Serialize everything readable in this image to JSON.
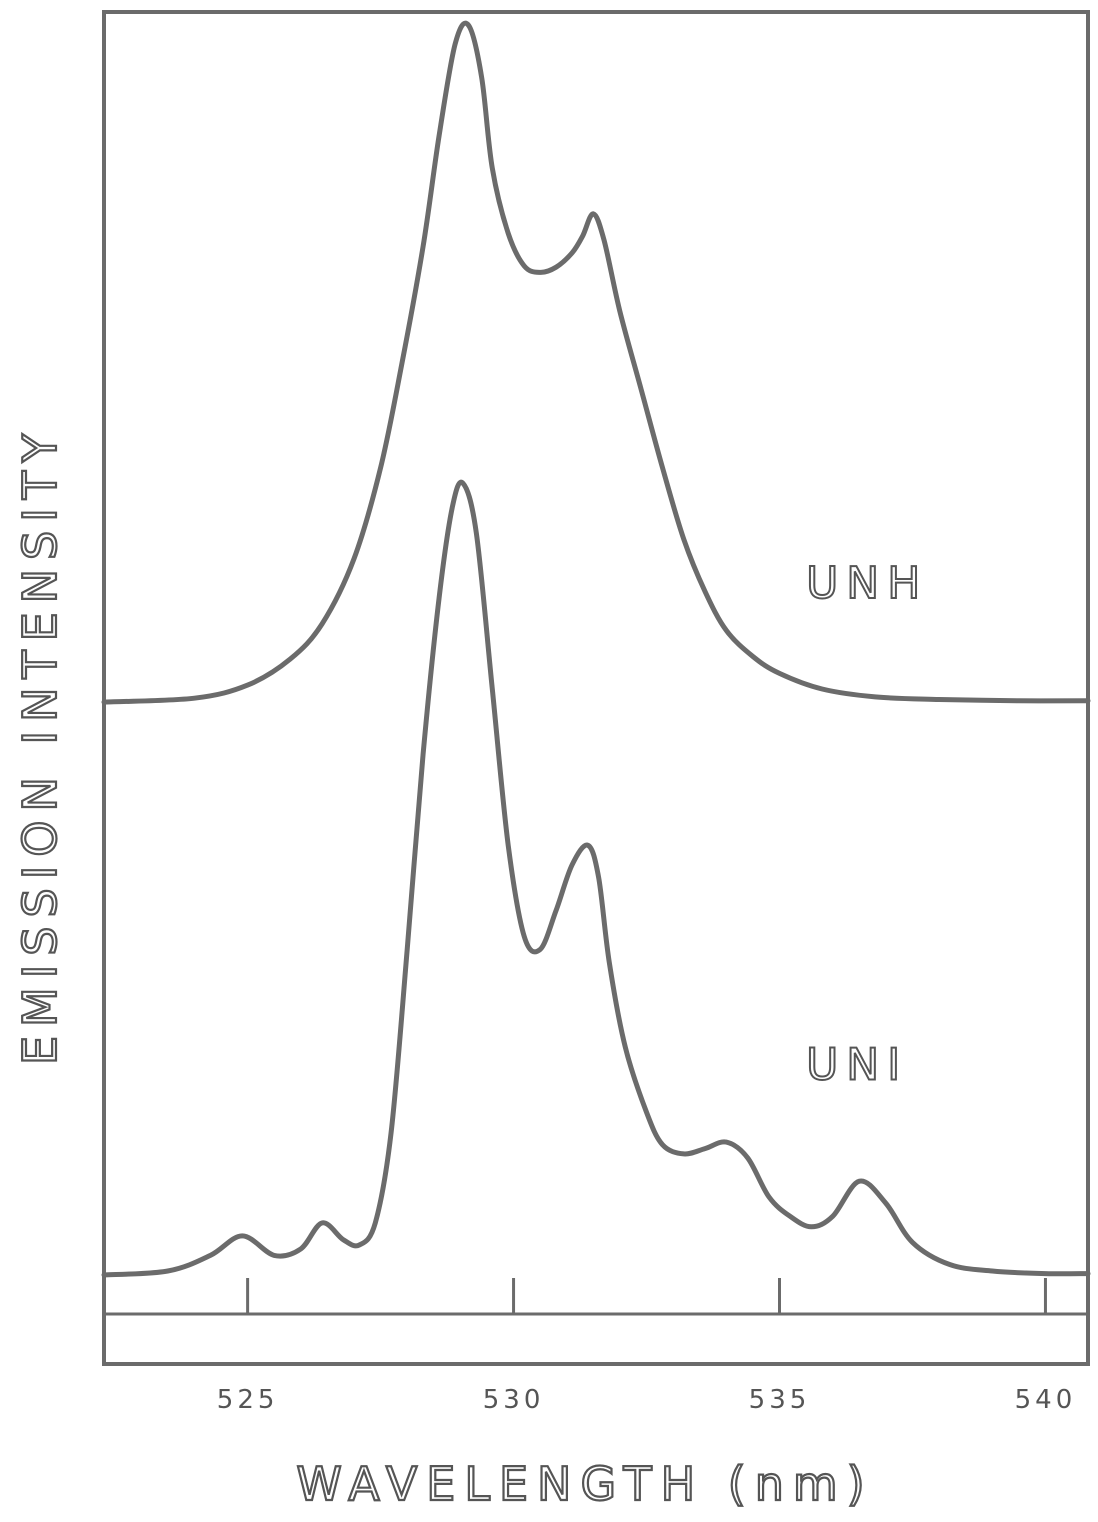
{
  "chart_data": {
    "type": "line",
    "xlabel": "WAVELENGTH (nm)",
    "ylabel": "EMISSION   INTENSITY",
    "xlim": [
      522.3,
      540.8
    ],
    "ylim": [
      0,
      100
    ],
    "xticks": [
      525,
      530,
      535,
      540
    ],
    "xtick_labels": [
      "525",
      "530",
      "535",
      "540"
    ],
    "grid": false,
    "series": [
      {
        "name": "UNH",
        "x": [
          522.3,
          524.0,
          525.0,
          525.8,
          526.4,
          527.0,
          527.5,
          527.9,
          528.3,
          528.6,
          528.9,
          529.15,
          529.4,
          529.6,
          529.9,
          530.2,
          530.5,
          530.8,
          531.1,
          531.3,
          531.5,
          531.7,
          532.0,
          532.4,
          532.8,
          533.2,
          533.6,
          534.0,
          534.5,
          535.0,
          535.8,
          536.8,
          538.0,
          539.5,
          540.8
        ],
        "y": [
          47.0,
          47.3,
          48.3,
          50.3,
          53.0,
          58.0,
          65.0,
          73.0,
          82.0,
          90.5,
          97.5,
          99.0,
          95.0,
          88.0,
          83.0,
          80.5,
          80.0,
          80.4,
          81.5,
          82.8,
          84.5,
          82.5,
          77.0,
          71.0,
          65.0,
          59.5,
          55.5,
          52.5,
          50.5,
          49.2,
          48.0,
          47.4,
          47.2,
          47.1,
          47.1
        ]
      },
      {
        "name": "UNI",
        "x": [
          522.3,
          523.5,
          524.3,
          524.9,
          525.5,
          526.0,
          526.4,
          526.8,
          527.1,
          527.4,
          527.7,
          528.0,
          528.3,
          528.6,
          528.85,
          529.05,
          529.3,
          529.6,
          529.9,
          530.2,
          530.5,
          530.8,
          531.1,
          531.4,
          531.6,
          531.8,
          532.1,
          532.5,
          532.8,
          533.2,
          533.6,
          534.0,
          534.4,
          534.8,
          535.2,
          535.6,
          536.0,
          536.5,
          537.0,
          537.5,
          538.2,
          539.0,
          540.0,
          540.8
        ],
        "y": [
          3.0,
          3.3,
          4.5,
          6.0,
          4.5,
          5.0,
          7.0,
          5.7,
          5.3,
          7.0,
          14.0,
          28.0,
          43.0,
          55.0,
          62.0,
          63.8,
          60.0,
          48.0,
          36.0,
          29.0,
          28.0,
          31.0,
          34.5,
          36.0,
          33.5,
          27.0,
          20.5,
          15.5,
          13.0,
          12.3,
          12.7,
          13.2,
          12.0,
          9.0,
          7.5,
          6.7,
          7.5,
          10.2,
          8.5,
          5.5,
          3.8,
          3.3,
          3.1,
          3.1
        ]
      }
    ],
    "annotations": [
      {
        "text": "UNH",
        "x": 535.5,
        "y": 55.0
      },
      {
        "text": "UNI",
        "x": 535.5,
        "y": 18.0
      }
    ]
  }
}
